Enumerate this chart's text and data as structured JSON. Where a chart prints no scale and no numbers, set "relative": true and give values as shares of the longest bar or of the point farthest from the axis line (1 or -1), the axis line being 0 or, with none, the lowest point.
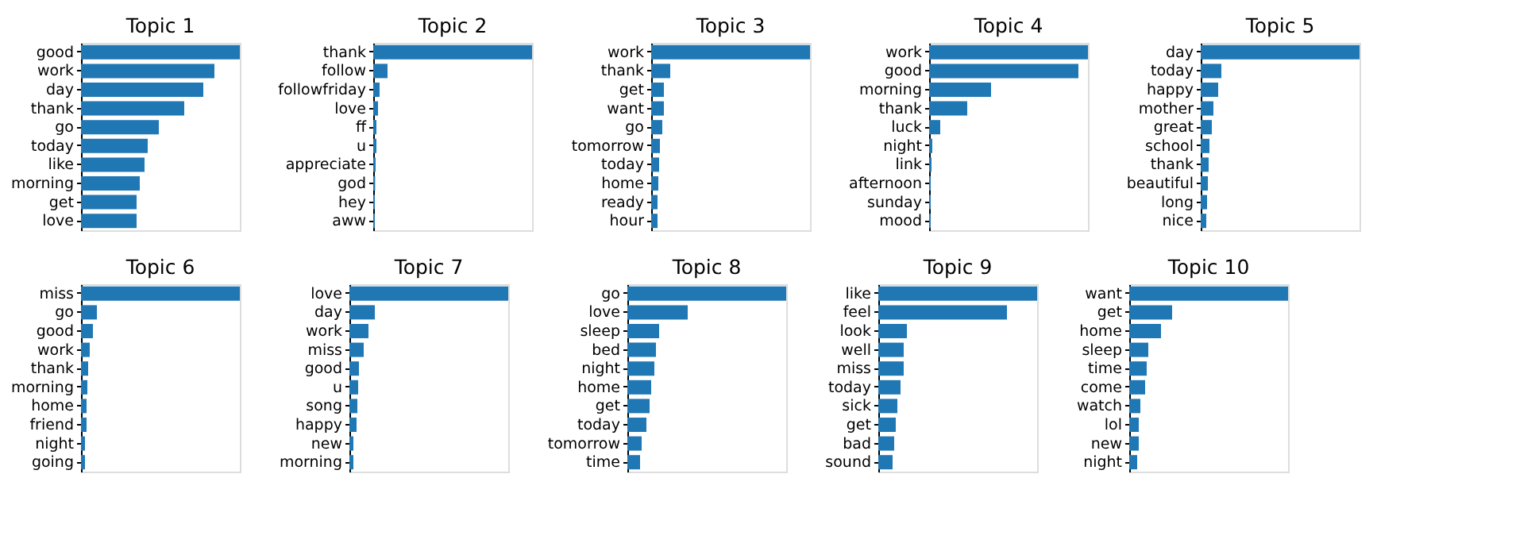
{
  "chart_data": [
    {
      "type": "bar",
      "orientation": "horizontal",
      "relative": true,
      "title": "Topic 1",
      "color": "#1f77b4",
      "categories": [
        "good",
        "work",
        "day",
        "thank",
        "go",
        "today",
        "like",
        "morning",
        "get",
        "love"
      ],
      "values": [
        1,
        0.84,
        0.77,
        0.65,
        0.49,
        0.42,
        0.4,
        0.37,
        0.35,
        0.35
      ]
    },
    {
      "type": "bar",
      "orientation": "horizontal",
      "relative": true,
      "title": "Topic 2",
      "color": "#1f77b4",
      "categories": [
        "thank",
        "follow",
        "followfriday",
        "love",
        "ff",
        "u",
        "appreciate",
        "god",
        "hey",
        "aww"
      ],
      "values": [
        1,
        0.09,
        0.04,
        0.03,
        0.02,
        0.02,
        0.015,
        0.012,
        0.01,
        0.01
      ]
    },
    {
      "type": "bar",
      "orientation": "horizontal",
      "relative": true,
      "title": "Topic 3",
      "color": "#1f77b4",
      "categories": [
        "work",
        "thank",
        "get",
        "want",
        "go",
        "tomorrow",
        "today",
        "home",
        "ready",
        "hour"
      ],
      "values": [
        1,
        0.12,
        0.08,
        0.08,
        0.07,
        0.055,
        0.05,
        0.045,
        0.04,
        0.04
      ]
    },
    {
      "type": "bar",
      "orientation": "horizontal",
      "relative": true,
      "title": "Topic 4",
      "color": "#1f77b4",
      "categories": [
        "work",
        "good",
        "morning",
        "thank",
        "luck",
        "night",
        "link",
        "afternoon",
        "sunday",
        "mood"
      ],
      "values": [
        1,
        0.94,
        0.39,
        0.24,
        0.07,
        0.02,
        0.015,
        0.01,
        0.01,
        0.01
      ]
    },
    {
      "type": "bar",
      "orientation": "horizontal",
      "relative": true,
      "title": "Topic 5",
      "color": "#1f77b4",
      "categories": [
        "day",
        "today",
        "happy",
        "mother",
        "great",
        "school",
        "thank",
        "beautiful",
        "long",
        "nice"
      ],
      "values": [
        1,
        0.13,
        0.11,
        0.08,
        0.07,
        0.055,
        0.05,
        0.045,
        0.04,
        0.035
      ]
    },
    {
      "type": "bar",
      "orientation": "horizontal",
      "relative": true,
      "title": "Topic 6",
      "color": "#1f77b4",
      "categories": [
        "miss",
        "go",
        "good",
        "work",
        "thank",
        "morning",
        "home",
        "friend",
        "night",
        "going"
      ],
      "values": [
        1,
        0.1,
        0.075,
        0.055,
        0.045,
        0.04,
        0.035,
        0.035,
        0.025,
        0.025
      ]
    },
    {
      "type": "bar",
      "orientation": "horizontal",
      "relative": true,
      "title": "Topic 7",
      "color": "#1f77b4",
      "categories": [
        "love",
        "day",
        "work",
        "miss",
        "good",
        "u",
        "song",
        "happy",
        "new",
        "morning"
      ],
      "values": [
        1,
        0.16,
        0.12,
        0.09,
        0.06,
        0.055,
        0.05,
        0.045,
        0.025,
        0.025
      ]
    },
    {
      "type": "bar",
      "orientation": "horizontal",
      "relative": true,
      "title": "Topic 8",
      "color": "#1f77b4",
      "categories": [
        "go",
        "love",
        "sleep",
        "bed",
        "night",
        "home",
        "get",
        "today",
        "tomorrow",
        "time"
      ],
      "values": [
        1,
        0.38,
        0.2,
        0.18,
        0.17,
        0.15,
        0.14,
        0.12,
        0.09,
        0.08
      ]
    },
    {
      "type": "bar",
      "orientation": "horizontal",
      "relative": true,
      "title": "Topic 9",
      "color": "#1f77b4",
      "categories": [
        "like",
        "feel",
        "look",
        "well",
        "miss",
        "today",
        "sick",
        "get",
        "bad",
        "sound"
      ],
      "values": [
        1,
        0.81,
        0.18,
        0.16,
        0.16,
        0.14,
        0.12,
        0.11,
        0.1,
        0.09
      ]
    },
    {
      "type": "bar",
      "orientation": "horizontal",
      "relative": true,
      "title": "Topic 10",
      "color": "#1f77b4",
      "categories": [
        "want",
        "get",
        "home",
        "sleep",
        "time",
        "come",
        "watch",
        "lol",
        "new",
        "night"
      ],
      "values": [
        1,
        0.27,
        0.2,
        0.12,
        0.11,
        0.1,
        0.07,
        0.06,
        0.06,
        0.05
      ]
    }
  ]
}
